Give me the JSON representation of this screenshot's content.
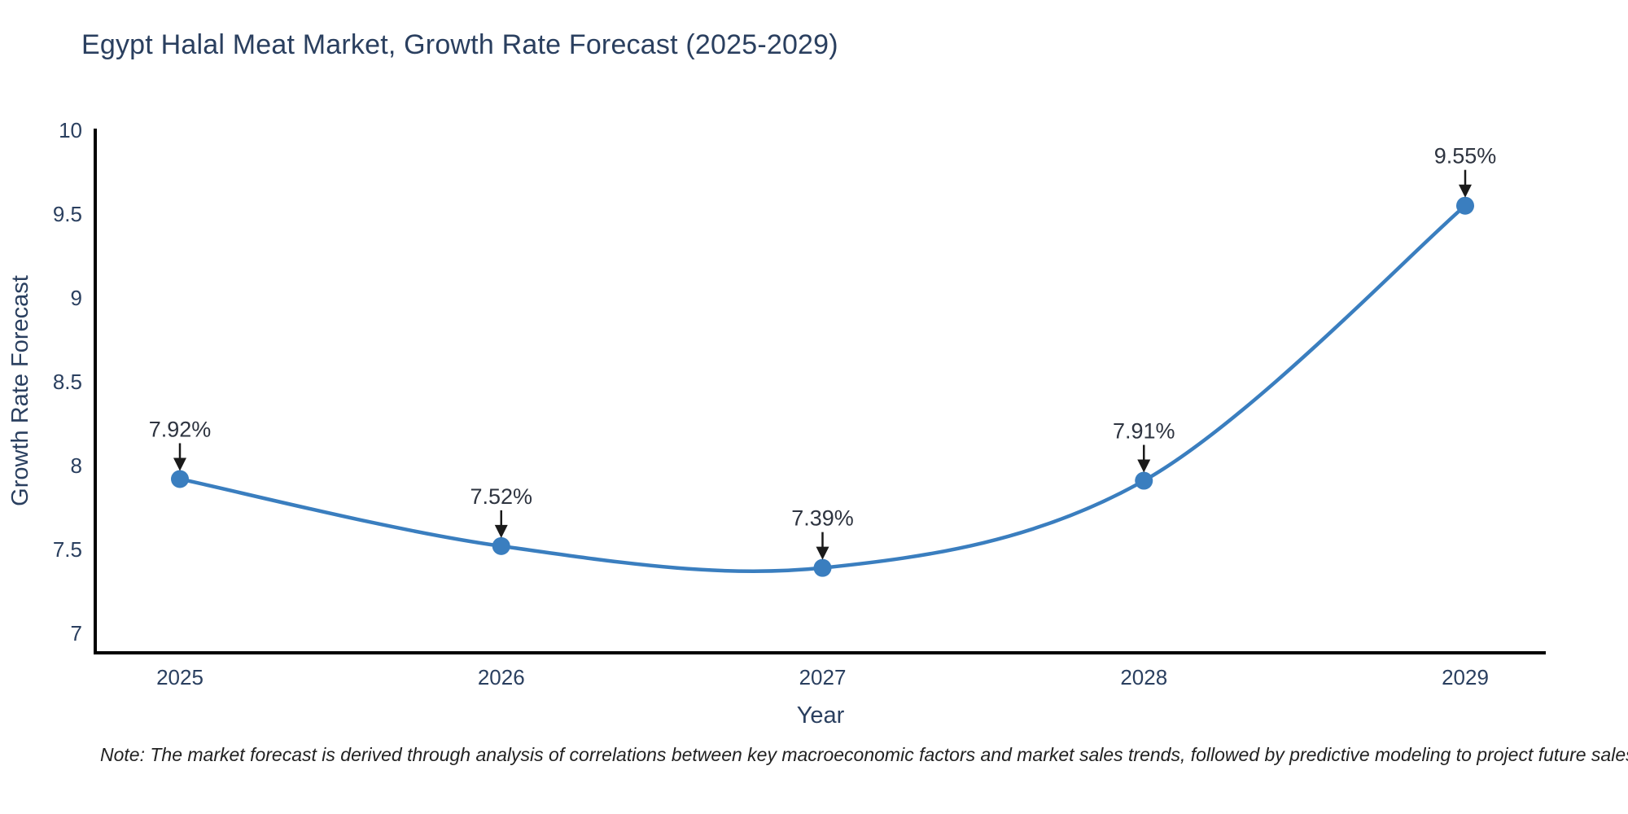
{
  "title": "Egypt Halal Meat Market, Growth Rate Forecast (2025-2029)",
  "note": "Note: The market forecast is derived through analysis of correlations between key macroeconomic factors and market sales trends, followed by predictive modeling to project future sales",
  "chart_data": {
    "type": "line",
    "title": "Egypt Halal Meat Market, Growth Rate Forecast (2025-2029)",
    "xlabel": "Year",
    "ylabel": "Growth Rate Forecast",
    "x": [
      2025,
      2026,
      2027,
      2028,
      2029
    ],
    "categories": [
      "2025",
      "2026",
      "2027",
      "2028",
      "2029"
    ],
    "series": [
      {
        "name": "Growth Rate Forecast",
        "values": [
          7.92,
          7.52,
          7.39,
          7.91,
          9.55
        ]
      }
    ],
    "annotations": [
      "7.92%",
      "7.52%",
      "7.39%",
      "7.91%",
      "9.55%"
    ],
    "yticks": [
      7,
      7.5,
      8,
      8.5,
      9,
      9.5,
      10
    ],
    "ytick_labels": [
      "7",
      "7.5",
      "8",
      "8.5",
      "9",
      "9.5",
      "10"
    ],
    "ylim": [
      6.88,
      10.01
    ],
    "line_shape": "spline",
    "grid": false,
    "legend": "none",
    "colors": {
      "line": "#3a7ebf",
      "marker": "#3a7ebf",
      "axis_line": "#000000",
      "tick_text": "#2a3f5f",
      "axis_title_text": "#2a3f5f",
      "annotation_text": "#2e3440",
      "arrow": "#1a1a1a",
      "background": "#ffffff"
    }
  }
}
